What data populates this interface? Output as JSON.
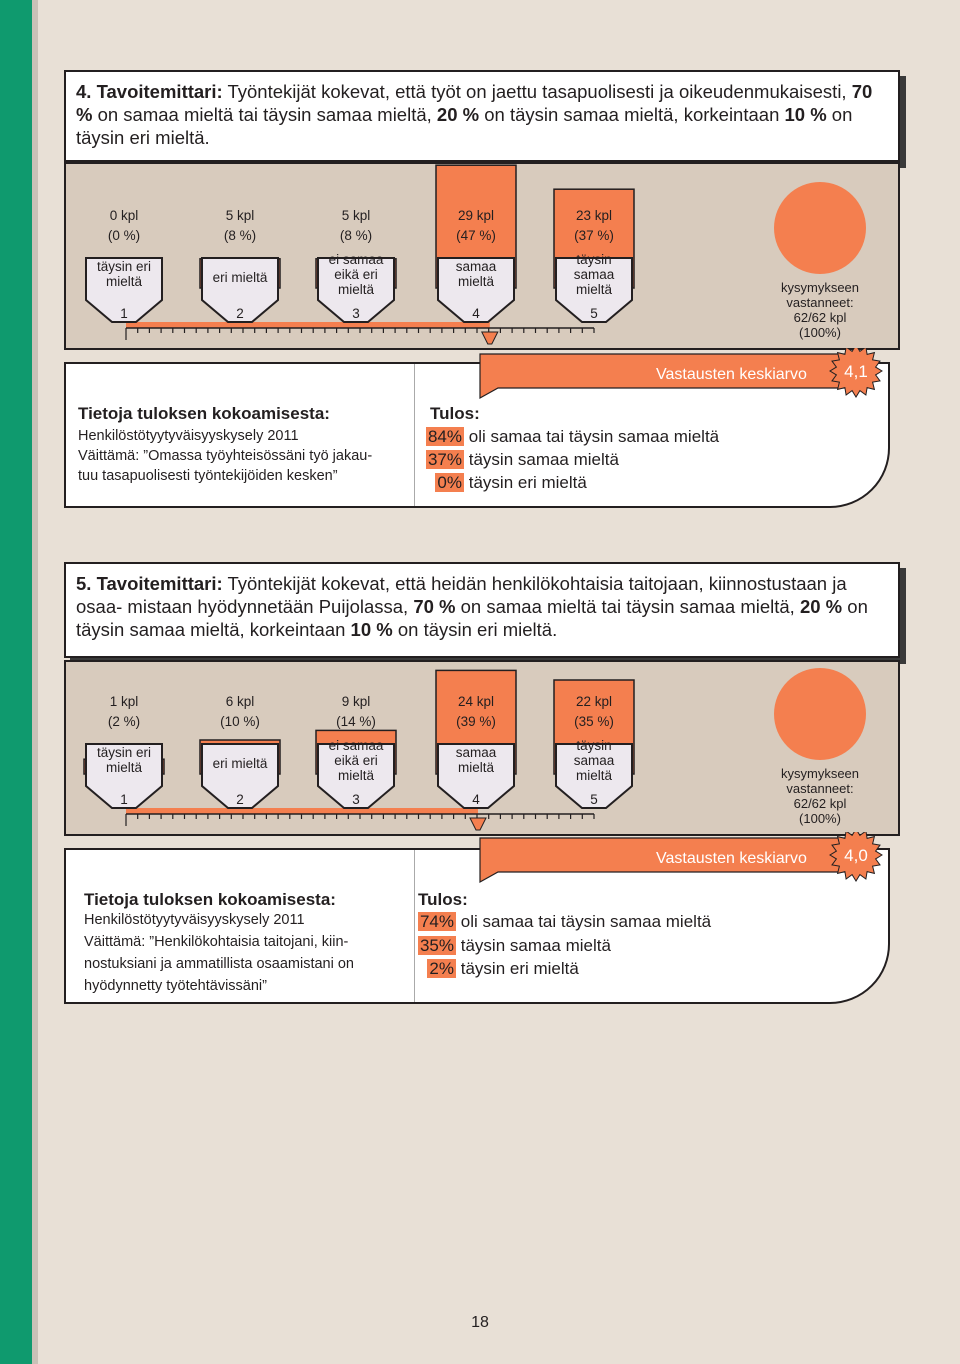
{
  "page_number": "18",
  "colors": {
    "accent": "#f47f4f",
    "stripe": "#0f9a6e",
    "panel": "#d8cbbd",
    "tag": "#ede8ee"
  },
  "scale": {
    "options": [
      {
        "num": "1",
        "lines": [
          "täysin eri",
          "mieltä"
        ]
      },
      {
        "num": "2",
        "lines": [
          "eri mieltä"
        ]
      },
      {
        "num": "3",
        "lines": [
          "ei samaa",
          "eikä eri",
          "mieltä"
        ]
      },
      {
        "num": "4",
        "lines": [
          "samaa",
          "mieltä"
        ]
      },
      {
        "num": "5",
        "lines": [
          "täysin",
          "samaa",
          "mieltä"
        ]
      }
    ],
    "total_lines": [
      "kysymykseen",
      "vastanneet:",
      "62/62 kpl",
      "(100%)"
    ],
    "avg_label": "Vastausten keskiarvo"
  },
  "sections": [
    {
      "title_num": "4.",
      "title_bold": "Tavoitemittari:",
      "title_text": " Työntekijät kokevat, että työt on jaettu tasapuolisesti ja oikeudenmukaisesti,",
      "title_rest": [
        {
          "b": "70 %",
          "t": " on samaa mieltä tai täysin samaa mieltä, "
        },
        {
          "b": "20 %",
          "t": " on täysin samaa mieltä, korkeintaan "
        },
        {
          "b": "10 %",
          "t": " on täysin eri mieltä."
        }
      ],
      "info_heading": "Tietoja tuloksen kokoamisesta:",
      "info_lines": [
        "Henkilöstötyytyväisyyskysely 2011",
        "Väittämä: ”Omassa työyhteisössäni työ jakau-",
        "tuu tasapuolisesti työntekijöiden kesken”"
      ],
      "result_heading": "Tulos:",
      "results": [
        {
          "pct": "84%",
          "text": "oli samaa tai täysin samaa mieltä"
        },
        {
          "pct": "37%",
          "text": "täysin samaa mieltä"
        },
        {
          "pct": "0%",
          "text": "täysin eri mieltä"
        }
      ],
      "average": "4,1"
    },
    {
      "title_num": "5.",
      "title_bold": "Tavoitemittari:",
      "title_text": " Työntekijät kokevat, että heidän henkilökohtaisia taitojaan, kiinnostustaan ja osaa-",
      "title_rest": [
        {
          "b": "",
          "t": "mistaan hyödynnetään Puijolassa, "
        },
        {
          "b": "70 %",
          "t": " on samaa mieltä tai täysin samaa mieltä, "
        },
        {
          "b": "20 %",
          "t": " on täysin samaa mieltä, korkeintaan "
        },
        {
          "b": "10 %",
          "t": " on täysin eri mieltä."
        }
      ],
      "info_heading": "Tietoja tuloksen kokoamisesta:",
      "info_lines": [
        "Henkilöstötyytyväisyyskysely 2011",
        "Väittämä: ”Henkilökohtaisia taitojani, kiin-",
        "nostuksiani ja ammatillista osaamistani on",
        "hyödynnetty työtehtävissäni”"
      ],
      "result_heading": "Tulos:",
      "results": [
        {
          "pct": "74%",
          "text": "oli samaa tai täysin samaa mieltä"
        },
        {
          "pct": "35%",
          "text": "täysin samaa mieltä"
        },
        {
          "pct": "2%",
          "text": "täysin eri mieltä"
        }
      ],
      "average": "4,0"
    }
  ],
  "chart_data": [
    {
      "type": "bar",
      "categories": [
        "1",
        "2",
        "3",
        "4",
        "5"
      ],
      "counts": [
        "0 kpl",
        "5 kpl",
        "5 kpl",
        "29 kpl",
        "23 kpl"
      ],
      "percents": [
        "(0 %)",
        "(8 %)",
        "(8 %)",
        "(47 %)",
        "(37 %)"
      ],
      "values": [
        0,
        8,
        8,
        47,
        37
      ],
      "average": 4.1,
      "total": "62/62 kpl (100%)"
    },
    {
      "type": "bar",
      "categories": [
        "1",
        "2",
        "3",
        "4",
        "5"
      ],
      "counts": [
        "1 kpl",
        "6 kpl",
        "9 kpl",
        "24 kpl",
        "22 kpl"
      ],
      "percents": [
        "(2 %)",
        "(10 %)",
        "(14 %)",
        "(39 %)",
        "(35 %)"
      ],
      "values": [
        2,
        10,
        14,
        39,
        35
      ],
      "average": 4.0,
      "total": "62/62 kpl (100%)"
    }
  ]
}
